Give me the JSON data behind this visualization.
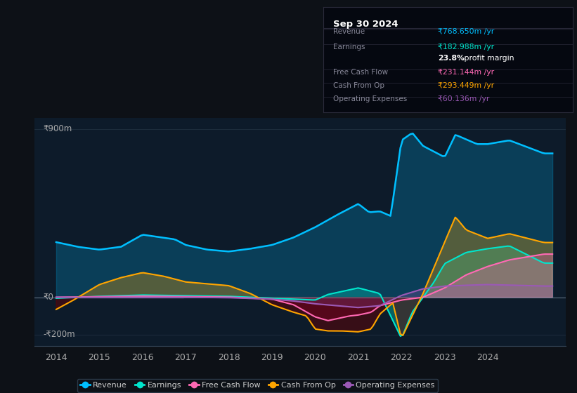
{
  "bg_color": "#0d1117",
  "plot_bg_color": "#0d1b2a",
  "revenue_color": "#00bfff",
  "earnings_color": "#00e5cc",
  "fcf_color": "#ff69b4",
  "cashop_color": "#ffa500",
  "opex_color": "#9b59b6",
  "infobox": {
    "title": "Sep 30 2024",
    "rows": [
      {
        "label": "Revenue",
        "value": "₹768.650m /yr",
        "vcolor": "#00bfff",
        "sep_before": true
      },
      {
        "label": "Earnings",
        "value": "₹182.988m /yr",
        "vcolor": "#00e5cc",
        "sep_before": true
      },
      {
        "label": "",
        "value": "23.8% profit margin",
        "vcolor": "white",
        "sep_before": false
      },
      {
        "label": "Free Cash Flow",
        "value": "₹231.144m /yr",
        "vcolor": "#ff69b4",
        "sep_before": true
      },
      {
        "label": "Cash From Op",
        "value": "₹293.449m /yr",
        "vcolor": "#ffa500",
        "sep_before": true
      },
      {
        "label": "Operating Expenses",
        "value": "₹60.136m /yr",
        "vcolor": "#9b59b6",
        "sep_before": true
      }
    ]
  },
  "rev_x": [
    2014.0,
    2014.5,
    2015.0,
    2015.5,
    2016.0,
    2016.75,
    2017.0,
    2017.5,
    2018.0,
    2018.5,
    2019.0,
    2019.5,
    2020.0,
    2020.5,
    2021.0,
    2021.25,
    2021.5,
    2021.75,
    2022.0,
    2022.25,
    2022.5,
    2023.0,
    2023.25,
    2023.75,
    2024.0,
    2024.5,
    2025.3
  ],
  "rev_y": [
    295,
    270,
    255,
    270,
    335,
    310,
    280,
    255,
    245,
    260,
    280,
    320,
    375,
    440,
    500,
    455,
    460,
    435,
    840,
    880,
    810,
    750,
    870,
    820,
    820,
    840,
    770
  ],
  "ear_x": [
    2014.0,
    2015.0,
    2016.0,
    2017.0,
    2018.0,
    2018.5,
    2019.0,
    2019.5,
    2020.0,
    2020.3,
    2020.6,
    2021.0,
    2021.5,
    2022.0,
    2022.25,
    2022.5,
    2022.75,
    2023.0,
    2023.5,
    2024.0,
    2024.5,
    2025.3
  ],
  "ear_y": [
    -5,
    5,
    12,
    8,
    5,
    0,
    -5,
    -10,
    -15,
    15,
    30,
    50,
    20,
    -220,
    -80,
    0,
    80,
    180,
    240,
    260,
    275,
    183
  ],
  "fcf_x": [
    2014.0,
    2015.0,
    2016.0,
    2017.0,
    2018.0,
    2019.0,
    2019.5,
    2020.0,
    2020.3,
    2020.5,
    2020.8,
    2021.0,
    2021.3,
    2021.5,
    2022.0,
    2022.5,
    2023.0,
    2023.5,
    2024.0,
    2024.5,
    2025.3
  ],
  "fcf_y": [
    0,
    3,
    6,
    3,
    1,
    -10,
    -40,
    -105,
    -125,
    -115,
    -100,
    -95,
    -80,
    -45,
    -15,
    0,
    50,
    120,
    165,
    200,
    231
  ],
  "cop_x": [
    2014.0,
    2014.4,
    2015.0,
    2015.5,
    2016.0,
    2016.5,
    2017.0,
    2018.0,
    2018.5,
    2019.0,
    2019.5,
    2019.8,
    2020.0,
    2020.3,
    2020.6,
    2021.0,
    2021.3,
    2021.5,
    2021.8,
    2022.0,
    2022.25,
    2022.5,
    2023.0,
    2023.25,
    2023.5,
    2024.0,
    2024.5,
    2025.3
  ],
  "cop_y": [
    -65,
    -15,
    68,
    105,
    132,
    112,
    82,
    62,
    20,
    -40,
    -80,
    -100,
    -170,
    -180,
    -180,
    -185,
    -170,
    -90,
    -30,
    -220,
    -100,
    20,
    295,
    430,
    360,
    315,
    340,
    293
  ],
  "opex_x": [
    2014.0,
    2015.0,
    2016.0,
    2017.0,
    2018.0,
    2019.0,
    2019.5,
    2020.0,
    2020.5,
    2021.0,
    2021.5,
    2022.0,
    2022.5,
    2023.0,
    2024.0,
    2025.3
  ],
  "opex_y": [
    0,
    0,
    0,
    0,
    -2,
    -10,
    -20,
    -35,
    -45,
    -55,
    -45,
    10,
    45,
    60,
    68,
    60
  ]
}
